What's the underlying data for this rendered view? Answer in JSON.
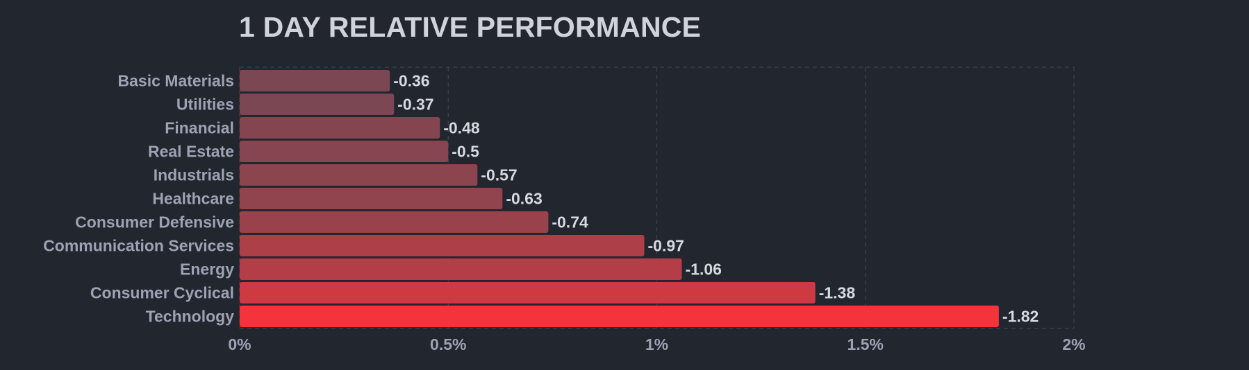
{
  "title": "1 DAY RELATIVE PERFORMANCE",
  "chart_data": {
    "type": "bar",
    "orientation": "horizontal",
    "title": "1 DAY RELATIVE PERFORMANCE",
    "xlabel": "",
    "ylabel": "",
    "categories": [
      "Basic Materials",
      "Utilities",
      "Financial",
      "Real Estate",
      "Industrials",
      "Healthcare",
      "Consumer Defensive",
      "Communication Services",
      "Energy",
      "Consumer Cyclical",
      "Technology"
    ],
    "values": [
      -0.36,
      -0.37,
      -0.48,
      -0.5,
      -0.57,
      -0.63,
      -0.74,
      -0.97,
      -1.06,
      -1.38,
      -1.82
    ],
    "value_labels": [
      "-0.36",
      "-0.37",
      "-0.48",
      "-0.5",
      "-0.57",
      "-0.63",
      "-0.74",
      "-0.97",
      "-1.06",
      "-1.38",
      "-1.82"
    ],
    "bar_scale": "absolute value",
    "xlim": [
      0,
      2
    ],
    "xticks": [
      0,
      0.5,
      1,
      1.5,
      2
    ],
    "xtick_labels": [
      "0%",
      "0.5%",
      "1%",
      "1.5%",
      "2%"
    ],
    "grid": true,
    "grid_style": "dashed vertical",
    "legend": "none",
    "colors": {
      "background": "#22262f",
      "bar_low": "#7a4753",
      "bar_high": "#f4343a",
      "grid": "#3d4250",
      "category_text": "#9da2b4",
      "value_text": "#d6d9e0",
      "title_text": "#d0d3dc"
    }
  }
}
